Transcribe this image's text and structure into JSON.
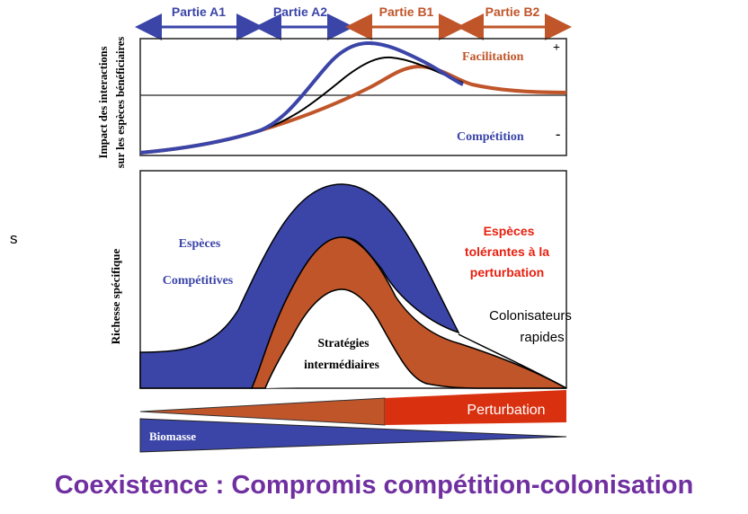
{
  "phases": [
    {
      "label": "Partie A1",
      "color": "#3b45a8"
    },
    {
      "label": "Partie A2",
      "color": "#3b45a8"
    },
    {
      "label": "Partie B1",
      "color": "#c0552a"
    },
    {
      "label": "Partie B2",
      "color": "#c0552a"
    }
  ],
  "top_panel": {
    "ylabel_line1": "Impact des interactions",
    "ylabel_line2": "sur les espèces bénéficiaires",
    "facilitation_label": "Facilitation",
    "competition_label": "Compétition",
    "plus_sign": "+",
    "minus_sign": "-"
  },
  "bottom_panel": {
    "ylabel": "Richesse spécifique",
    "especes_label": "Espèces",
    "competitives_label": "Compétitives",
    "strategies_label": "Stratégies",
    "intermediaires_label": "intermédiaires",
    "tolerantes_line1": "Espèces",
    "tolerantes_line2": "tolérantes à la",
    "tolerantes_line3": "perturbation",
    "colonisateurs_line1": "Colonisateurs",
    "colonisateurs_line2": "rapides"
  },
  "gradients": {
    "perturbation_label": "Perturbation",
    "biomasse_label": "Biomasse"
  },
  "stray_letter": "s",
  "title": "Coexistence : Compromis compétition-colonisation",
  "colors": {
    "blue": "#3b45a8",
    "orange": "#c0552a",
    "red": "#d9300f",
    "purple_title": "#7030a0",
    "tolerantes_red": "#e8200f"
  }
}
